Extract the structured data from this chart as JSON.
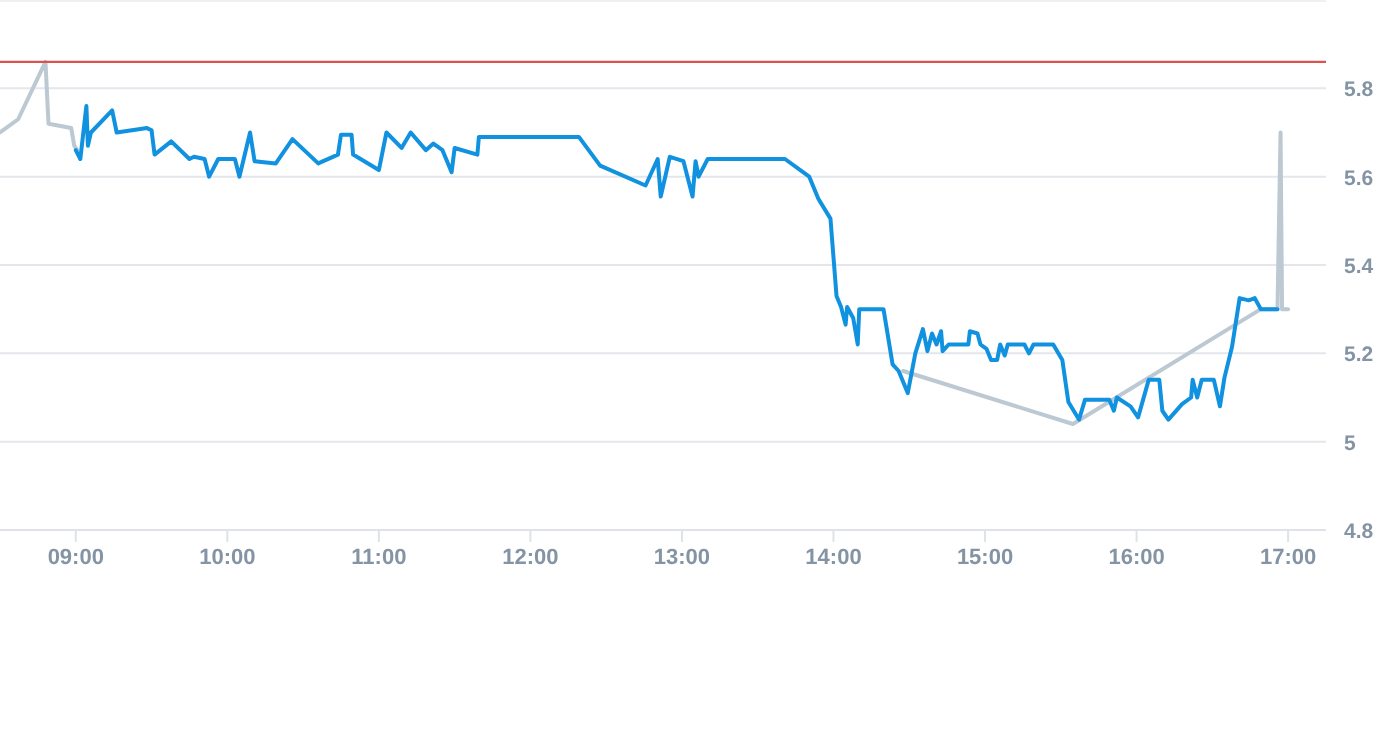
{
  "chart_data": {
    "type": "line",
    "xlim": [
      8.5,
      17.25
    ],
    "ylim": [
      4.8,
      6.0
    ],
    "xticks": [
      {
        "value": 9,
        "label": "09:00"
      },
      {
        "value": 10,
        "label": "10:00"
      },
      {
        "value": 11,
        "label": "11:00"
      },
      {
        "value": 12,
        "label": "12:00"
      },
      {
        "value": 13,
        "label": "13:00"
      },
      {
        "value": 14,
        "label": "14:00"
      },
      {
        "value": 15,
        "label": "15:00"
      },
      {
        "value": 16,
        "label": "16:00"
      },
      {
        "value": 17,
        "label": "17:00"
      }
    ],
    "yticks": [
      4.8,
      5,
      5.2,
      5.4,
      5.6,
      5.8
    ],
    "grid": "y",
    "marker": "none",
    "line_style": "solid",
    "ref_lines": [
      {
        "axis": "y",
        "value": 5.86,
        "label": null,
        "color": "#d9534f"
      }
    ],
    "series": [
      {
        "color": "#bcc8d2",
        "x": [
          8.5,
          8.62,
          8.8,
          8.82,
          8.97,
          8.99,
          9.01,
          14.38,
          14.46,
          15.58,
          16.82,
          16.93,
          16.95,
          16.96,
          17.0
        ],
        "values": [
          5.7,
          5.73,
          5.86,
          5.72,
          5.71,
          5.67,
          5.66,
          null,
          5.16,
          5.04,
          5.3,
          5.3,
          5.7,
          5.3,
          5.3
        ]
      },
      {
        "color": "#1192e0",
        "x": [
          9.0,
          9.03,
          9.07,
          9.08,
          9.1,
          9.24,
          9.27,
          9.47,
          9.5,
          9.52,
          9.63,
          9.75,
          9.78,
          9.85,
          9.88,
          9.94,
          10.05,
          10.08,
          10.15,
          10.18,
          10.32,
          10.43,
          10.6,
          10.73,
          10.75,
          10.82,
          10.83,
          11.0,
          11.05,
          11.15,
          11.21,
          11.31,
          11.36,
          11.42,
          11.48,
          11.5,
          11.65,
          11.66,
          12.32,
          12.46,
          12.76,
          12.84,
          12.86,
          12.92,
          13.01,
          13.07,
          13.09,
          13.11,
          13.17,
          13.68,
          13.84,
          13.9,
          13.98,
          14.02,
          14.05,
          14.08,
          14.09,
          14.13,
          14.16,
          14.17,
          14.33,
          14.39,
          14.43,
          14.49,
          14.54,
          14.59,
          14.62,
          14.65,
          14.68,
          14.71,
          14.72,
          14.76,
          14.89,
          14.9,
          14.95,
          14.97,
          15.01,
          15.04,
          15.08,
          15.1,
          15.13,
          15.15,
          15.26,
          15.29,
          15.32,
          15.45,
          15.51,
          15.55,
          15.62,
          15.66,
          15.82,
          15.85,
          15.87,
          15.96,
          16.01,
          16.08,
          16.15,
          16.17,
          16.21,
          16.3,
          16.36,
          16.37,
          16.4,
          16.43,
          16.51,
          16.55,
          16.58,
          16.63,
          16.68,
          16.74,
          16.78,
          16.82,
          16.93
        ],
        "values": [
          5.66,
          5.64,
          5.76,
          5.67,
          5.7,
          5.75,
          5.7,
          5.71,
          5.705,
          5.65,
          5.68,
          5.64,
          5.645,
          5.64,
          5.6,
          5.64,
          5.64,
          5.6,
          5.7,
          5.635,
          5.63,
          5.685,
          5.63,
          5.65,
          5.695,
          5.695,
          5.65,
          5.615,
          5.7,
          5.665,
          5.7,
          5.66,
          5.675,
          5.66,
          5.61,
          5.665,
          5.65,
          5.69,
          5.69,
          5.625,
          5.58,
          5.64,
          5.555,
          5.645,
          5.635,
          5.555,
          5.635,
          5.6,
          5.64,
          5.64,
          5.6,
          5.55,
          5.505,
          5.33,
          5.305,
          5.265,
          5.305,
          5.28,
          5.22,
          5.3,
          5.3,
          5.175,
          5.16,
          5.11,
          5.2,
          5.255,
          5.205,
          5.245,
          5.22,
          5.25,
          5.205,
          5.22,
          5.22,
          5.25,
          5.245,
          5.22,
          5.21,
          5.185,
          5.185,
          5.22,
          5.195,
          5.22,
          5.22,
          5.2,
          5.22,
          5.22,
          5.185,
          5.09,
          5.05,
          5.095,
          5.095,
          5.07,
          5.1,
          5.08,
          5.055,
          5.14,
          5.14,
          5.07,
          5.05,
          5.085,
          5.1,
          5.14,
          5.1,
          5.14,
          5.14,
          5.08,
          5.145,
          5.215,
          5.325,
          5.32,
          5.325,
          5.3,
          5.3
        ]
      }
    ]
  }
}
